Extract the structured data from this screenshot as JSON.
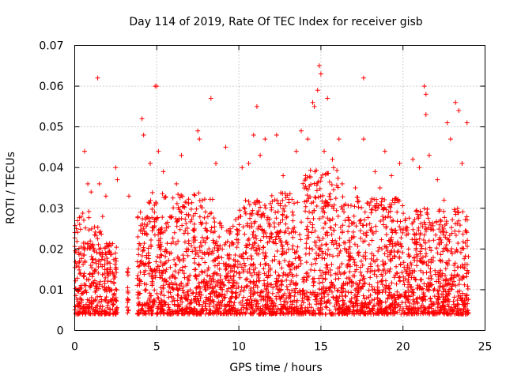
{
  "chart_data": {
    "type": "scatter",
    "title": "Day 114 of 2019, Rate Of TEC Index for receiver gisb",
    "xlabel": "GPS time / hours",
    "ylabel": "ROTI / TECUs",
    "xlim": [
      0,
      25
    ],
    "ylim": [
      0,
      0.07
    ],
    "x_ticks": [
      "0",
      "5",
      "10",
      "15",
      "20",
      "25"
    ],
    "y_ticks": [
      "0",
      "0.01",
      "0.02",
      "0.03",
      "0.04",
      "0.05",
      "0.06",
      "0.07"
    ],
    "grid": true,
    "marker": "+",
    "color": "#ff0000",
    "series": [
      {
        "name": "ROTI",
        "points": [
          [
            0.1,
            0.025
          ],
          [
            0.3,
            0.017
          ],
          [
            0.6,
            0.044
          ],
          [
            0.8,
            0.036
          ],
          [
            1.0,
            0.034
          ],
          [
            1.4,
            0.062
          ],
          [
            1.5,
            0.036
          ],
          [
            1.7,
            0.028
          ],
          [
            1.9,
            0.033
          ],
          [
            2.0,
            0.015
          ],
          [
            2.2,
            0.012
          ],
          [
            2.5,
            0.04
          ],
          [
            2.6,
            0.037
          ],
          [
            3.3,
            0.033
          ],
          [
            4.1,
            0.052
          ],
          [
            4.2,
            0.048
          ],
          [
            4.6,
            0.041
          ],
          [
            4.9,
            0.06
          ],
          [
            5.0,
            0.06
          ],
          [
            5.1,
            0.044
          ],
          [
            5.4,
            0.039
          ],
          [
            6.2,
            0.036
          ],
          [
            6.5,
            0.043
          ],
          [
            7.5,
            0.049
          ],
          [
            7.6,
            0.047
          ],
          [
            8.3,
            0.057
          ],
          [
            8.6,
            0.041
          ],
          [
            9.2,
            0.045
          ],
          [
            10.2,
            0.04
          ],
          [
            10.6,
            0.041
          ],
          [
            10.9,
            0.048
          ],
          [
            11.1,
            0.055
          ],
          [
            11.3,
            0.043
          ],
          [
            11.6,
            0.047
          ],
          [
            12.3,
            0.048
          ],
          [
            12.7,
            0.038
          ],
          [
            13.5,
            0.044
          ],
          [
            13.8,
            0.049
          ],
          [
            14.2,
            0.047
          ],
          [
            14.5,
            0.056
          ],
          [
            14.6,
            0.055
          ],
          [
            14.8,
            0.059
          ],
          [
            14.9,
            0.065
          ],
          [
            15.0,
            0.063
          ],
          [
            15.2,
            0.044
          ],
          [
            15.4,
            0.057
          ],
          [
            15.7,
            0.042
          ],
          [
            16.1,
            0.047
          ],
          [
            16.3,
            0.036
          ],
          [
            17.1,
            0.035
          ],
          [
            17.6,
            0.062
          ],
          [
            17.6,
            0.047
          ],
          [
            18.3,
            0.039
          ],
          [
            18.6,
            0.035
          ],
          [
            18.9,
            0.044
          ],
          [
            19.3,
            0.038
          ],
          [
            19.8,
            0.041
          ],
          [
            20.6,
            0.042
          ],
          [
            21.0,
            0.04
          ],
          [
            21.3,
            0.06
          ],
          [
            21.4,
            0.058
          ],
          [
            21.4,
            0.053
          ],
          [
            21.6,
            0.043
          ],
          [
            22.1,
            0.037
          ],
          [
            22.5,
            0.032
          ],
          [
            22.7,
            0.051
          ],
          [
            22.9,
            0.047
          ],
          [
            23.2,
            0.056
          ],
          [
            23.4,
            0.054
          ],
          [
            23.6,
            0.041
          ],
          [
            23.9,
            0.051
          ]
        ]
      }
    ]
  }
}
